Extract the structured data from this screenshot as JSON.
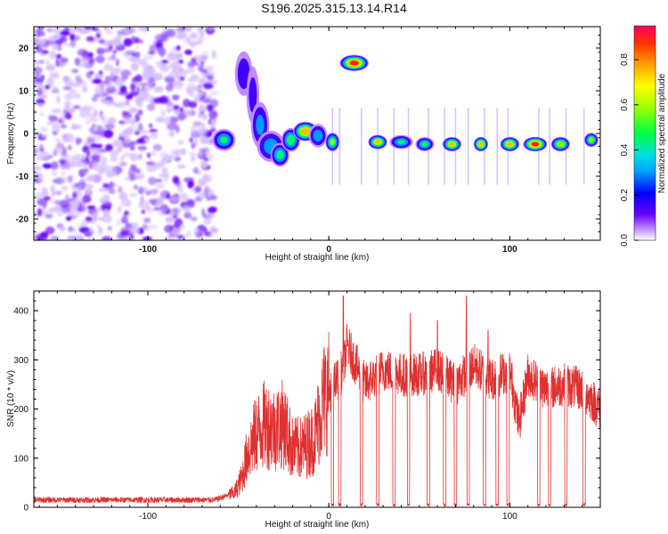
{
  "title": "S196.2025.315.13.14.R14",
  "colors": {
    "line": "#e03030",
    "frame": "#000000",
    "scatter": "#8a2be2"
  },
  "chart_data": [
    {
      "type": "heatmap",
      "name": "spectrogram",
      "xlabel": "Height of straight line (km)",
      "ylabel": "Frequency (Hz)",
      "xlim": [
        -163,
        150
      ],
      "ylim": [
        -25,
        25
      ],
      "xticks": [
        -100,
        0,
        100
      ],
      "xtick_labels": [
        "-100",
        "0",
        "100"
      ],
      "yticks": [
        -20,
        -10,
        0,
        10,
        20
      ],
      "ytick_labels": [
        "-20",
        "-10",
        "0",
        "10",
        "20"
      ],
      "colorbar": {
        "label": "Normalized spectral amplitude",
        "range": [
          0,
          0.95
        ],
        "ticks": [
          0.0,
          0.2,
          0.4,
          0.6,
          0.8
        ],
        "tick_labels": [
          "0.0",
          "0.2",
          "0.4",
          "0.6",
          "0.8"
        ]
      },
      "noise_region": {
        "x_start": -163,
        "x_end": -63
      },
      "features": [
        {
          "x": -58,
          "f": -1.5,
          "amp": 0.45,
          "w": 5,
          "h": 1.4
        },
        {
          "x": -47,
          "f": 14,
          "amp": 0.25,
          "w": 4,
          "h": 3
        },
        {
          "x": -42,
          "f": 9,
          "amp": 0.2,
          "w": 3,
          "h": 4
        },
        {
          "x": -38,
          "f": 2,
          "amp": 0.35,
          "w": 4,
          "h": 3
        },
        {
          "x": -32,
          "f": -3,
          "amp": 0.4,
          "w": 6,
          "h": 2
        },
        {
          "x": -27,
          "f": -5,
          "amp": 0.5,
          "w": 4,
          "h": 1.5
        },
        {
          "x": -21,
          "f": -1.5,
          "amp": 0.55,
          "w": 4,
          "h": 1.5
        },
        {
          "x": -13,
          "f": 0.5,
          "amp": 0.85,
          "w": 5,
          "h": 1.2
        },
        {
          "x": -6,
          "f": -0.5,
          "amp": 0.4,
          "w": 4,
          "h": 1.5
        },
        {
          "x": 2,
          "f": -2,
          "amp": 0.6,
          "w": 3,
          "h": 1.2
        },
        {
          "x": 14,
          "f": 16.5,
          "amp": 0.95,
          "w": 6,
          "h": 1.0
        },
        {
          "x": 27,
          "f": -2,
          "amp": 0.75,
          "w": 4,
          "h": 0.9
        },
        {
          "x": 40,
          "f": -2,
          "amp": 0.45,
          "w": 5,
          "h": 0.9
        },
        {
          "x": 53,
          "f": -2.5,
          "amp": 0.5,
          "w": 4,
          "h": 0.9
        },
        {
          "x": 68,
          "f": -2.5,
          "amp": 0.75,
          "w": 4,
          "h": 0.9
        },
        {
          "x": 84,
          "f": -2.5,
          "amp": 0.8,
          "w": 3,
          "h": 0.9
        },
        {
          "x": 100,
          "f": -2.5,
          "amp": 0.8,
          "w": 4,
          "h": 0.9
        },
        {
          "x": 114,
          "f": -2.5,
          "amp": 0.95,
          "w": 5,
          "h": 0.9
        },
        {
          "x": 128,
          "f": -2.5,
          "amp": 0.7,
          "w": 4,
          "h": 0.9
        },
        {
          "x": 145,
          "f": -1.5,
          "amp": 0.6,
          "w": 3,
          "h": 0.9
        }
      ]
    },
    {
      "type": "line",
      "name": "snr",
      "xlabel": "Height of straight line (km)",
      "ylabel": "SNR (10 * v/v)",
      "xlim": [
        -163,
        150
      ],
      "ylim": [
        0,
        440
      ],
      "xticks": [
        -100,
        0,
        100
      ],
      "xtick_labels": [
        "-100",
        "0",
        "100"
      ],
      "yticks": [
        0,
        100,
        200,
        300,
        400
      ],
      "ytick_labels": [
        "0",
        "100",
        "200",
        "300",
        "400"
      ],
      "envelope": [
        [
          -163,
          15
        ],
        [
          -80,
          15
        ],
        [
          -63,
          15
        ],
        [
          -52,
          30
        ],
        [
          -48,
          60
        ],
        [
          -45,
          110
        ],
        [
          -40,
          150
        ],
        [
          -35,
          170
        ],
        [
          -30,
          160
        ],
        [
          -25,
          170
        ],
        [
          -20,
          120
        ],
        [
          -15,
          120
        ],
        [
          -8,
          140
        ],
        [
          -3,
          220
        ],
        [
          3,
          250
        ],
        [
          8,
          280
        ],
        [
          10,
          330
        ],
        [
          20,
          250
        ],
        [
          30,
          280
        ],
        [
          40,
          270
        ],
        [
          50,
          270
        ],
        [
          60,
          280
        ],
        [
          70,
          250
        ],
        [
          80,
          290
        ],
        [
          90,
          260
        ],
        [
          100,
          280
        ],
        [
          105,
          170
        ],
        [
          110,
          270
        ],
        [
          120,
          240
        ],
        [
          130,
          250
        ],
        [
          140,
          240
        ],
        [
          150,
          200
        ]
      ],
      "dropouts": [
        2,
        6,
        18,
        27,
        36,
        44,
        55,
        64,
        70,
        77,
        86,
        93,
        99,
        116,
        122,
        131,
        141
      ],
      "spikes": [
        [
          8,
          430
        ],
        [
          76,
          430
        ],
        [
          45,
          395
        ],
        [
          60,
          380
        ],
        [
          88,
          360
        ]
      ]
    }
  ]
}
